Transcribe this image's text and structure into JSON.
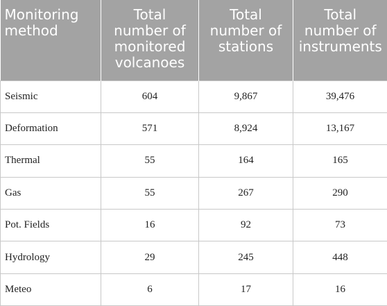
{
  "table": {
    "headers": [
      "Monitoring method",
      "Total number of monitored volcanoes",
      "Total number of stations",
      "Total number of instruments"
    ],
    "rows": [
      [
        "Seismic",
        "604",
        "9,867",
        "39,476"
      ],
      [
        "Deformation",
        "571",
        "8,924",
        "13,167"
      ],
      [
        "Thermal",
        "55",
        "164",
        "165"
      ],
      [
        "Gas",
        "55",
        "267",
        "290"
      ],
      [
        "Pot. Fields",
        "16",
        "92",
        "73"
      ],
      [
        "Hydrology",
        "29",
        "245",
        "448"
      ],
      [
        "Meteo",
        "6",
        "17",
        "16"
      ]
    ]
  },
  "colors": {
    "header_bg": "#a3a3a3",
    "header_text": "#ffffff",
    "grid": "#c8c8c8",
    "body_text": "#222222"
  }
}
